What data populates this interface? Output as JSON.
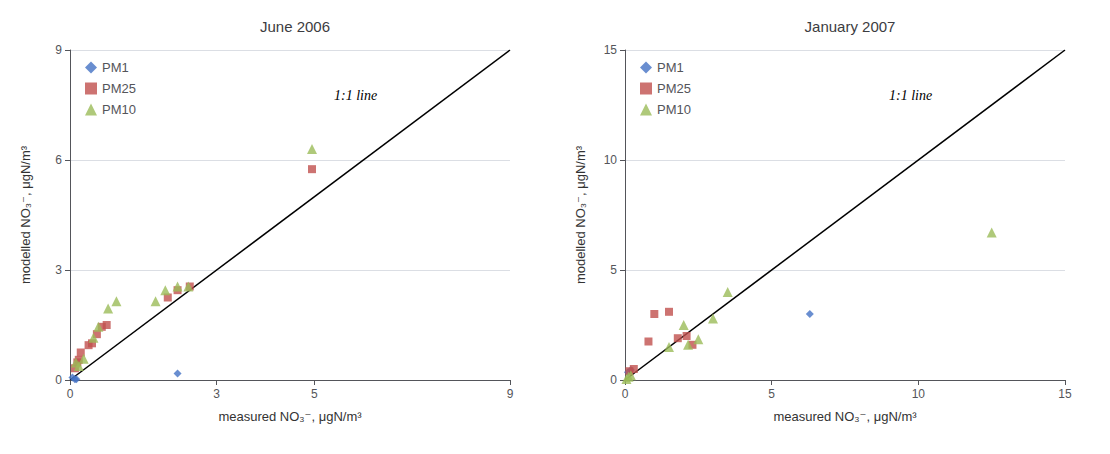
{
  "chart_data": [
    {
      "type": "scatter",
      "title": "June 2006",
      "xlabel": "measured NO₃⁻, μgN/m³",
      "ylabel": "modelled NO₃⁻, μgN/m³",
      "xlim": [
        0,
        9
      ],
      "ylim": [
        0,
        9
      ],
      "xticks": [
        0,
        3,
        5,
        9
      ],
      "yticks": [
        0,
        3,
        6,
        9
      ],
      "grid": "y",
      "legend": "upper left",
      "annotation": "1:1 line",
      "series": [
        {
          "type": "line",
          "color": "#000000",
          "x": [
            0,
            9
          ],
          "values": [
            0,
            9
          ]
        },
        {
          "name": "PM1",
          "color": "#4472C4",
          "marker": "diamond",
          "x": [
            0.05,
            0.1,
            0.13,
            2.2
          ],
          "values": [
            0.07,
            0.02,
            0.02,
            0.18
          ]
        },
        {
          "name": "PM25",
          "color": "#C0504D",
          "marker": "square",
          "x": [
            0.1,
            0.15,
            0.18,
            0.22,
            0.38,
            0.45,
            0.55,
            0.65,
            0.75,
            2.0,
            2.2,
            2.45,
            4.95
          ],
          "values": [
            0.32,
            0.48,
            0.55,
            0.75,
            0.95,
            1.0,
            1.25,
            1.45,
            1.5,
            2.25,
            2.45,
            2.55,
            5.75
          ]
        },
        {
          "name": "PM10",
          "color": "#9BBB59",
          "marker": "triangle",
          "x": [
            0.12,
            0.18,
            0.28,
            0.48,
            0.58,
            0.78,
            0.95,
            1.75,
            1.95,
            2.2,
            2.42,
            4.95
          ],
          "values": [
            0.48,
            0.38,
            0.58,
            1.15,
            1.45,
            1.95,
            2.15,
            2.15,
            2.45,
            2.55,
            2.55,
            6.3
          ]
        }
      ]
    },
    {
      "type": "scatter",
      "title": "January 2007",
      "xlabel": "measured NO₃⁻, μgN/m³",
      "ylabel": "modelled NO₃⁻, μgN/m³",
      "xlim": [
        0,
        15
      ],
      "ylim": [
        0,
        15
      ],
      "xticks": [
        0,
        5,
        10,
        15
      ],
      "yticks": [
        0,
        5,
        10,
        15
      ],
      "grid": "y",
      "legend": "upper left",
      "annotation": "1:1 line",
      "series": [
        {
          "type": "line",
          "color": "#000000",
          "x": [
            0,
            15
          ],
          "values": [
            0,
            15
          ]
        },
        {
          "name": "PM1",
          "color": "#4472C4",
          "marker": "diamond",
          "x": [
            0.1,
            0.2,
            6.3
          ],
          "values": [
            0.35,
            0.45,
            3.0
          ]
        },
        {
          "name": "PM25",
          "color": "#C0504D",
          "marker": "square",
          "x": [
            0.15,
            0.3,
            0.8,
            1.0,
            1.5,
            1.8,
            2.1,
            2.3
          ],
          "values": [
            0.4,
            0.5,
            1.75,
            3.0,
            3.1,
            1.9,
            2.0,
            1.6
          ]
        },
        {
          "name": "PM10",
          "color": "#9BBB59",
          "marker": "triangle",
          "x": [
            0.05,
            0.12,
            0.2,
            1.5,
            2.0,
            2.15,
            2.5,
            3.0,
            3.5,
            12.5
          ],
          "values": [
            0.05,
            0.15,
            0.22,
            1.5,
            2.5,
            1.6,
            1.85,
            2.8,
            4.0,
            6.7
          ]
        }
      ]
    }
  ]
}
